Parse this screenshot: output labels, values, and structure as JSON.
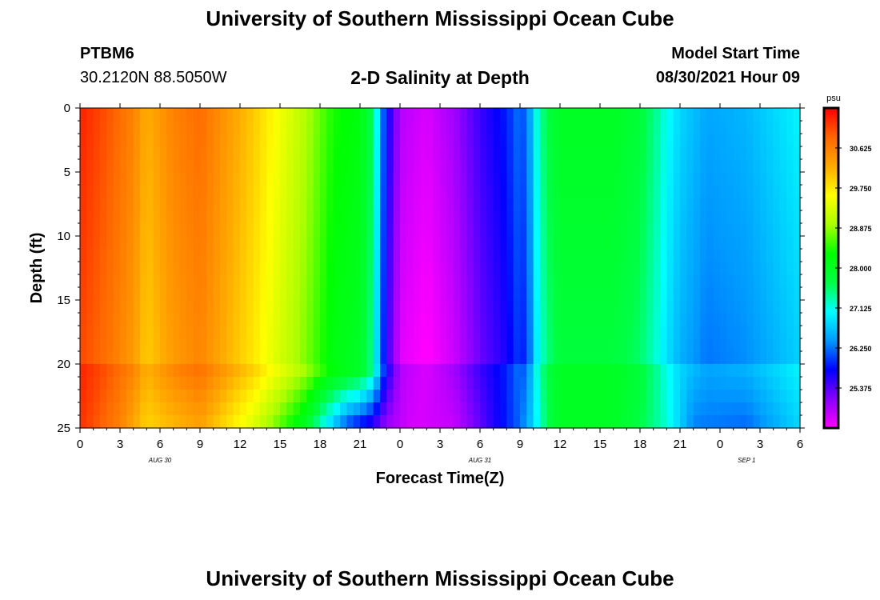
{
  "page": {
    "title": "University of Southern Mississippi Ocean Cube",
    "footer_title": "University of Southern Mississippi Ocean Cube",
    "station": "PTBM6",
    "coords": "30.2120N  88.5050W",
    "plot_title": "2-D Salinity at Depth",
    "model_start_label": "Model Start Time",
    "model_start_value": "08/30/2021 Hour 09"
  },
  "chart_data": {
    "type": "heatmap",
    "title": "2-D Salinity at Depth",
    "xlabel": "Forecast Time(Z)",
    "ylabel": "Depth (ft)",
    "y_ticks": [
      "0",
      "5",
      "10",
      "15",
      "20",
      "25"
    ],
    "ylim": [
      0,
      25
    ],
    "x_ticks": [
      "0",
      "3",
      "6",
      "9",
      "12",
      "15",
      "18",
      "21",
      "0",
      "3",
      "6",
      "9",
      "12",
      "15",
      "18",
      "21",
      "0",
      "3",
      "6"
    ],
    "xlim": [
      0,
      54
    ],
    "date_labels": [
      {
        "text": "AUG 30",
        "hour": 6
      },
      {
        "text": "AUG 31",
        "hour": 30
      },
      {
        "text": "SEP 1",
        "hour": 50
      }
    ],
    "colorbar": {
      "unit": "psu",
      "range": [
        24.5,
        31.5
      ],
      "ticks": [
        "30.625",
        "29.750",
        "28.875",
        "28.000",
        "27.125",
        "26.250",
        "25.375"
      ],
      "tick_values": [
        30.625,
        29.75,
        28.875,
        28.0,
        27.125,
        26.25,
        25.375
      ],
      "colors": [
        "#ff00ff",
        "#8800ff",
        "#0000ff",
        "#0099ff",
        "#00ffff",
        "#00ff44",
        "#00ff00",
        "#aaff00",
        "#ffff00",
        "#ffaa00",
        "#ff6600",
        "#ff0000"
      ]
    },
    "surface_profile": {
      "hours": [
        0,
        2,
        4,
        5,
        7,
        9,
        11,
        13,
        15,
        17,
        19,
        21,
        22,
        22.5,
        23,
        24,
        26,
        28,
        30,
        32,
        33,
        33.5,
        34,
        35,
        36,
        38,
        40,
        42,
        43,
        44,
        45,
        47,
        50,
        54
      ],
      "values": [
        31.3,
        31.0,
        30.6,
        30.2,
        30.6,
        30.8,
        30.4,
        30.0,
        29.5,
        29.0,
        28.4,
        28.2,
        27.6,
        26.5,
        25.8,
        24.9,
        24.7,
        25.0,
        25.5,
        25.9,
        26.3,
        26.0,
        27.0,
        27.7,
        28.0,
        28.0,
        28.0,
        27.8,
        27.5,
        27.1,
        26.8,
        26.5,
        26.6,
        27.0
      ]
    },
    "bottom_profile": {
      "depth_start": 20,
      "hours": [
        0,
        3,
        5,
        7,
        9,
        11,
        13,
        15,
        17,
        18,
        19,
        20,
        21,
        22,
        23,
        25,
        28,
        30,
        33,
        34,
        35,
        36,
        40,
        42,
        44,
        46,
        50,
        54
      ],
      "values": [
        31.2,
        30.6,
        29.9,
        30.1,
        30.3,
        29.8,
        29.3,
        28.6,
        27.9,
        27.2,
        26.6,
        26.0,
        25.7,
        25.4,
        25.0,
        24.7,
        24.8,
        25.3,
        26.2,
        26.8,
        27.6,
        28.0,
        28.0,
        27.7,
        27.2,
        26.3,
        26.2,
        26.8
      ]
    }
  }
}
